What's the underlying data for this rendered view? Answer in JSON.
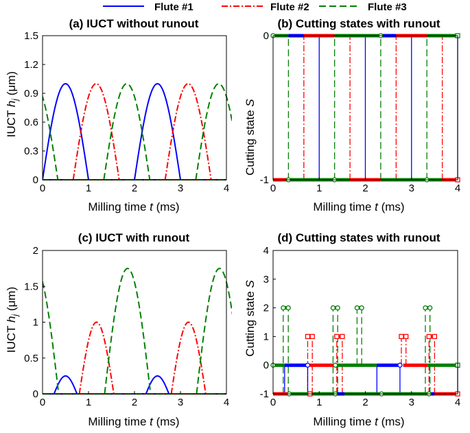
{
  "legend": [
    {
      "label": "Flute #1",
      "color": "#0000ff",
      "dash": "solid"
    },
    {
      "label": "Flute #2",
      "color": "#ff0000",
      "dash": "dashdot"
    },
    {
      "label": "Flute #3",
      "color": "#008000",
      "dash": "dashed"
    }
  ],
  "panels": {
    "a": {
      "title": "(a) IUCT without runout",
      "xlabel": "Milling time",
      "xlabel_var": "t",
      "xlabel_unit": " (ms)",
      "ylabel": "IUCT",
      "ylabel_var": "h",
      "ylabel_sub": "j",
      "ylabel_unit": " (μm)"
    },
    "b": {
      "title": "(b) Cutting states with runout",
      "xlabel": "Milling time",
      "xlabel_var": "t",
      "xlabel_unit": " (ms)",
      "ylabel": "Cutting state",
      "ylabel_var": "S"
    },
    "c": {
      "title": "(c) IUCT with runout",
      "xlabel": "Milling time",
      "xlabel_var": "t",
      "xlabel_unit": " (ms)",
      "ylabel": "IUCT",
      "ylabel_var": "h",
      "ylabel_sub": "j",
      "ylabel_unit": " (μm)"
    },
    "d": {
      "title": "(d) Cutting states with runout",
      "xlabel": "Milling time",
      "xlabel_var": "t",
      "xlabel_unit": " (ms)",
      "ylabel": "Cutting state",
      "ylabel_var": "S"
    }
  },
  "colors": {
    "flute1": "#0000ff",
    "flute2": "#ff0000",
    "flute3": "#008000"
  },
  "chart_data": [
    {
      "id": "a",
      "type": "line",
      "title": "(a) IUCT without runout",
      "xlabel": "Milling time t (ms)",
      "ylabel": "IUCT h_j (μm)",
      "xlim": [
        0,
        4
      ],
      "ylim": [
        0,
        1.5
      ],
      "xticks": [
        "0",
        "1",
        "2",
        "3",
        "4"
      ],
      "yticks": [
        "0",
        "0.3",
        "0.6",
        "0.9",
        "1.2",
        "1.5"
      ],
      "series": [
        {
          "name": "Flute #1",
          "arcs": [
            {
              "start": 0,
              "end": 1.0,
              "peak": 1.0
            },
            {
              "start": 2.0,
              "end": 3.0,
              "peak": 1.0
            }
          ]
        },
        {
          "name": "Flute #2",
          "arcs": [
            {
              "start": 0.667,
              "end": 1.667,
              "peak": 1.0
            },
            {
              "start": 2.667,
              "end": 3.667,
              "peak": 1.0
            }
          ]
        },
        {
          "name": "Flute #3",
          "arcs": [
            {
              "start": -0.667,
              "end": 0.333,
              "peak": 1.0
            },
            {
              "start": 1.333,
              "end": 2.333,
              "peak": 1.0
            },
            {
              "start": 3.333,
              "end": 4.333,
              "peak": 1.0
            }
          ]
        }
      ]
    },
    {
      "id": "b",
      "type": "step",
      "title": "(b) Cutting states with runout",
      "xlabel": "Milling time t (ms)",
      "ylabel": "Cutting state S",
      "xlim": [
        0,
        4
      ],
      "ylim": [
        -1,
        0
      ],
      "xticks": [
        "0",
        "1",
        "2",
        "3",
        "4"
      ],
      "yticks": [
        "-1",
        "0"
      ],
      "top_segments": [
        {
          "x0": 0,
          "x1": 0.333,
          "series": "Flute #3"
        },
        {
          "x0": 0.333,
          "x1": 0.667,
          "series": "Flute #1"
        },
        {
          "x0": 0.667,
          "x1": 1.333,
          "series": "Flute #2"
        },
        {
          "x0": 1.333,
          "x1": 2.333,
          "series": "Flute #3"
        },
        {
          "x0": 2.333,
          "x1": 2.667,
          "series": "Flute #1"
        },
        {
          "x0": 2.667,
          "x1": 3.333,
          "series": "Flute #2"
        },
        {
          "x0": 3.333,
          "x1": 4.0,
          "series": "Flute #3"
        }
      ],
      "bottom_segments": [
        {
          "x0": 0,
          "x1": 0.333,
          "series": "Flute #2"
        },
        {
          "x0": 0.333,
          "x1": 1.667,
          "series": "Flute #3"
        },
        {
          "x0": 1.667,
          "x1": 2.333,
          "series": "Flute #2"
        },
        {
          "x0": 2.333,
          "x1": 3.667,
          "series": "Flute #3"
        },
        {
          "x0": 3.667,
          "x1": 4.0,
          "series": "Flute #2"
        }
      ],
      "transitions": [
        {
          "x": 0.333,
          "series": "Flute #3"
        },
        {
          "x": 0.667,
          "series": "Flute #2"
        },
        {
          "x": 1.0,
          "series": "Flute #1"
        },
        {
          "x": 1.333,
          "series": "Flute #3"
        },
        {
          "x": 1.667,
          "series": "Flute #2"
        },
        {
          "x": 2.0,
          "series": "Flute #1"
        },
        {
          "x": 2.333,
          "series": "Flute #3"
        },
        {
          "x": 2.667,
          "series": "Flute #2"
        },
        {
          "x": 3.0,
          "series": "Flute #1"
        },
        {
          "x": 3.333,
          "series": "Flute #3"
        },
        {
          "x": 3.667,
          "series": "Flute #2"
        },
        {
          "x": 4.0,
          "series": "Flute #1"
        }
      ],
      "markers": [
        {
          "x": 0,
          "y": 0,
          "shape": "circle",
          "series": "Flute #3"
        },
        {
          "x": 0.333,
          "y": -1,
          "shape": "circle",
          "series": "Flute #3"
        },
        {
          "x": 1.333,
          "y": -1,
          "shape": "circle",
          "series": "Flute #3"
        },
        {
          "x": 2.333,
          "y": 0,
          "shape": "circle",
          "series": "Flute #3"
        },
        {
          "x": 3.333,
          "y": -1,
          "shape": "circle",
          "series": "Flute #3"
        },
        {
          "x": 4.0,
          "y": 0,
          "shape": "square",
          "series": "Flute #3"
        },
        {
          "x": 4.0,
          "y": -1,
          "shape": "square",
          "series": "Flute #2"
        }
      ]
    },
    {
      "id": "c",
      "type": "line",
      "title": "(c) IUCT with runout",
      "xlabel": "Milling time t (ms)",
      "ylabel": "IUCT h_j (μm)",
      "xlim": [
        0,
        4
      ],
      "ylim": [
        0,
        2
      ],
      "xticks": [
        "0",
        "1",
        "2",
        "3",
        "4"
      ],
      "yticks": [
        "0",
        "0.5",
        "1",
        "1.5",
        "2"
      ],
      "series": [
        {
          "name": "Flute #1",
          "arcs": [
            {
              "start": 0.25,
              "end": 0.75,
              "peak": 0.25
            },
            {
              "start": 2.25,
              "end": 2.75,
              "peak": 0.25
            }
          ]
        },
        {
          "name": "Flute #2",
          "arcs": [
            {
              "start": 0.8,
              "end": 1.55,
              "peak": 1.0
            },
            {
              "start": 2.8,
              "end": 3.55,
              "peak": 1.0
            }
          ]
        },
        {
          "name": "Flute #3",
          "arcs": [
            {
              "start": -0.65,
              "end": 0.35,
              "peak": 1.75
            },
            {
              "start": 1.35,
              "end": 2.35,
              "peak": 1.75
            },
            {
              "start": 3.35,
              "end": 4.35,
              "peak": 1.75
            }
          ]
        }
      ]
    },
    {
      "id": "d",
      "type": "step",
      "title": "(d) Cutting states with runout",
      "xlabel": "Milling time t (ms)",
      "ylabel": "Cutting state S",
      "xlim": [
        0,
        4
      ],
      "ylim": [
        -1,
        4
      ],
      "xticks": [
        "0",
        "1",
        "2",
        "3",
        "4"
      ],
      "yticks": [
        "-1",
        "0",
        "1",
        "2",
        "3",
        "4"
      ],
      "horizontal_segments": [
        {
          "y": 0,
          "x0": 0,
          "x1": 0.25,
          "series": "Flute #3"
        },
        {
          "y": 0,
          "x0": 0.25,
          "x1": 0.75,
          "series": "Flute #1"
        },
        {
          "y": 0,
          "x0": 0.8,
          "x1": 1.35,
          "series": "Flute #2"
        },
        {
          "y": 0,
          "x0": 1.35,
          "x1": 2.25,
          "series": "Flute #3"
        },
        {
          "y": 0,
          "x0": 2.25,
          "x1": 2.75,
          "series": "Flute #1"
        },
        {
          "y": 0,
          "x0": 2.82,
          "x1": 3.35,
          "series": "Flute #2"
        },
        {
          "y": 0,
          "x0": 3.35,
          "x1": 4.0,
          "series": "Flute #3"
        },
        {
          "y": -1,
          "x0": 0,
          "x1": 0.35,
          "series": "Flute #2"
        },
        {
          "y": -1,
          "x0": 0.35,
          "x1": 1.35,
          "series": "Flute #3"
        },
        {
          "y": -1,
          "x0": 1.35,
          "x1": 1.55,
          "series": "Flute #1"
        },
        {
          "y": -1,
          "x0": 1.55,
          "x1": 2.35,
          "series": "Flute #3"
        },
        {
          "y": -1,
          "x0": 2.35,
          "x1": 3.38,
          "series": "Flute #3"
        },
        {
          "y": -1,
          "x0": 3.38,
          "x1": 3.5,
          "series": "Flute #1"
        },
        {
          "y": -1,
          "x0": 3.5,
          "x1": 4.0,
          "series": "Flute #2"
        },
        {
          "y": 2,
          "x0": 0.22,
          "x1": 0.33,
          "series": "Flute #3"
        },
        {
          "y": 2,
          "x0": 1.3,
          "x1": 1.4,
          "series": "Flute #3"
        },
        {
          "y": 2,
          "x0": 1.82,
          "x1": 1.92,
          "series": "Flute #3"
        },
        {
          "y": 2,
          "x0": 3.3,
          "x1": 3.4,
          "series": "Flute #3"
        },
        {
          "y": 1,
          "x0": 0.75,
          "x1": 0.85,
          "series": "Flute #2"
        },
        {
          "y": 1,
          "x0": 1.38,
          "x1": 1.5,
          "series": "Flute #2"
        },
        {
          "y": 1,
          "x0": 2.78,
          "x1": 2.88,
          "series": "Flute #2"
        },
        {
          "y": 1,
          "x0": 3.38,
          "x1": 3.5,
          "series": "Flute #2"
        }
      ],
      "vertical_lines": [
        {
          "x": 0.22,
          "y0": -1,
          "y1": 2,
          "series": "Flute #3"
        },
        {
          "x": 0.33,
          "y0": -1,
          "y1": 2,
          "series": "Flute #3"
        },
        {
          "x": 0.25,
          "y0": -1,
          "y1": 0,
          "series": "Flute #1"
        },
        {
          "x": 0.75,
          "y0": -1,
          "y1": 1,
          "series": "Flute #2"
        },
        {
          "x": 0.85,
          "y0": -1,
          "y1": 1,
          "series": "Flute #2"
        },
        {
          "x": 0.75,
          "y0": -1,
          "y1": 0,
          "series": "Flute #1"
        },
        {
          "x": 1.3,
          "y0": -1,
          "y1": 2,
          "series": "Flute #3"
        },
        {
          "x": 1.4,
          "y0": -1,
          "y1": 2,
          "series": "Flute #3"
        },
        {
          "x": 1.38,
          "y0": -1,
          "y1": 1,
          "series": "Flute #2"
        },
        {
          "x": 1.5,
          "y0": -1,
          "y1": 1,
          "series": "Flute #2"
        },
        {
          "x": 1.82,
          "y0": 0,
          "y1": 2,
          "series": "Flute #3"
        },
        {
          "x": 1.92,
          "y0": 0,
          "y1": 2,
          "series": "Flute #3"
        },
        {
          "x": 2.25,
          "y0": -1,
          "y1": 0,
          "series": "Flute #1"
        },
        {
          "x": 2.75,
          "y0": -1,
          "y1": 0,
          "series": "Flute #1"
        },
        {
          "x": 2.78,
          "y0": 0,
          "y1": 1,
          "series": "Flute #2"
        },
        {
          "x": 2.88,
          "y0": 0,
          "y1": 1,
          "series": "Flute #2"
        },
        {
          "x": 3.3,
          "y0": -1,
          "y1": 2,
          "series": "Flute #3"
        },
        {
          "x": 3.4,
          "y0": -1,
          "y1": 2,
          "series": "Flute #3"
        },
        {
          "x": 3.38,
          "y0": -1,
          "y1": 1,
          "series": "Flute #2"
        },
        {
          "x": 3.5,
          "y0": -1,
          "y1": 1,
          "series": "Flute #2"
        },
        {
          "x": 4.0,
          "y0": -1,
          "y1": 0,
          "series": "Flute #1"
        }
      ],
      "markers": [
        {
          "x": 0.22,
          "y": 2,
          "shape": "circle",
          "series": "Flute #3"
        },
        {
          "x": 0.33,
          "y": 2,
          "shape": "circle",
          "series": "Flute #3"
        },
        {
          "x": 1.3,
          "y": 2,
          "shape": "circle",
          "series": "Flute #3"
        },
        {
          "x": 1.4,
          "y": 2,
          "shape": "circle",
          "series": "Flute #3"
        },
        {
          "x": 1.82,
          "y": 2,
          "shape": "circle",
          "series": "Flute #3"
        },
        {
          "x": 1.92,
          "y": 2,
          "shape": "circle",
          "series": "Flute #3"
        },
        {
          "x": 3.3,
          "y": 2,
          "shape": "circle",
          "series": "Flute #3"
        },
        {
          "x": 3.4,
          "y": 2,
          "shape": "circle",
          "series": "Flute #3"
        },
        {
          "x": 0.75,
          "y": 1,
          "shape": "square",
          "series": "Flute #2"
        },
        {
          "x": 0.85,
          "y": 1,
          "shape": "square",
          "series": "Flute #2"
        },
        {
          "x": 1.38,
          "y": 1,
          "shape": "square",
          "series": "Flute #2"
        },
        {
          "x": 1.5,
          "y": 1,
          "shape": "square",
          "series": "Flute #2"
        },
        {
          "x": 2.78,
          "y": 1,
          "shape": "square",
          "series": "Flute #2"
        },
        {
          "x": 2.88,
          "y": 1,
          "shape": "square",
          "series": "Flute #2"
        },
        {
          "x": 3.38,
          "y": 1,
          "shape": "square",
          "series": "Flute #2"
        },
        {
          "x": 3.5,
          "y": 1,
          "shape": "square",
          "series": "Flute #2"
        },
        {
          "x": 0,
          "y": 0,
          "shape": "circle",
          "series": "Flute #3"
        },
        {
          "x": 0.75,
          "y": 0,
          "shape": "circle",
          "series": "Flute #1"
        },
        {
          "x": 1.35,
          "y": 0,
          "shape": "circle",
          "series": "Flute #3"
        },
        {
          "x": 2.75,
          "y": 0,
          "shape": "circle",
          "series": "Flute #1"
        },
        {
          "x": 0.35,
          "y": -1,
          "shape": "circle",
          "series": "Flute #3"
        },
        {
          "x": 0.8,
          "y": -1,
          "shape": "square",
          "series": "Flute #2"
        },
        {
          "x": 1.35,
          "y": -1,
          "shape": "circle",
          "series": "Flute #3"
        },
        {
          "x": 2.35,
          "y": -1,
          "shape": "circle",
          "series": "Flute #3"
        },
        {
          "x": 3.38,
          "y": -1,
          "shape": "circle",
          "series": "Flute #3"
        },
        {
          "x": 4.0,
          "y": -1,
          "shape": "square",
          "series": "Flute #2"
        },
        {
          "x": 4.0,
          "y": 0,
          "shape": "square",
          "series": "Flute #3"
        }
      ]
    }
  ]
}
